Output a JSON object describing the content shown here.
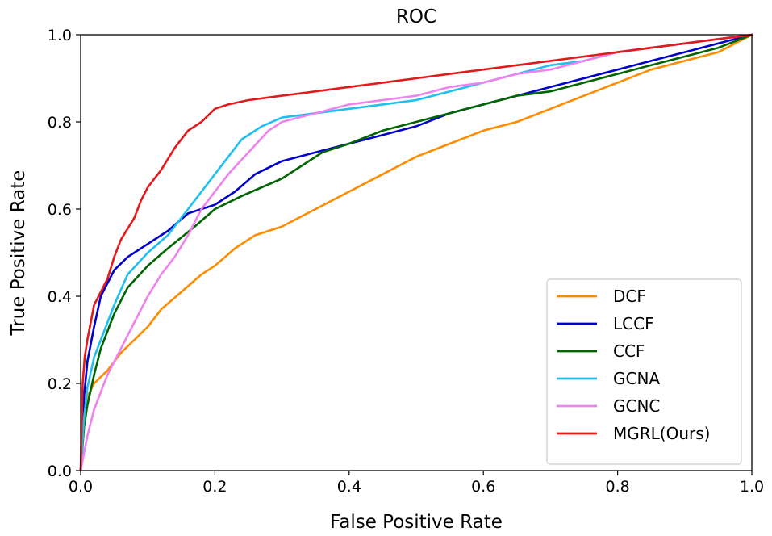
{
  "chart_data": {
    "type": "line",
    "title": "ROC",
    "xlabel": "False Positive Rate",
    "ylabel": "True Positive Rate",
    "xlim": [
      0.0,
      1.0
    ],
    "ylim": [
      0.0,
      1.0
    ],
    "x_ticks": [
      0.0,
      0.2,
      0.4,
      0.6,
      0.8,
      1.0
    ],
    "y_ticks": [
      0.0,
      0.2,
      0.4,
      0.6,
      0.8,
      1.0
    ],
    "x_tick_labels": [
      "0.0",
      "0.2",
      "0.4",
      "0.6",
      "0.8",
      "1.0"
    ],
    "y_tick_labels": [
      "0.0",
      "0.2",
      "0.4",
      "0.6",
      "0.8",
      "1.0"
    ],
    "grid": false,
    "legend_position": "bottom-right",
    "series": [
      {
        "name": "DCF",
        "color": "#ff8c00",
        "points": [
          [
            0,
            0
          ],
          [
            0.005,
            0.12
          ],
          [
            0.01,
            0.17
          ],
          [
            0.02,
            0.2
          ],
          [
            0.04,
            0.23
          ],
          [
            0.06,
            0.27
          ],
          [
            0.08,
            0.3
          ],
          [
            0.1,
            0.33
          ],
          [
            0.12,
            0.37
          ],
          [
            0.15,
            0.41
          ],
          [
            0.18,
            0.45
          ],
          [
            0.2,
            0.47
          ],
          [
            0.23,
            0.51
          ],
          [
            0.26,
            0.54
          ],
          [
            0.3,
            0.56
          ],
          [
            0.35,
            0.6
          ],
          [
            0.4,
            0.64
          ],
          [
            0.45,
            0.68
          ],
          [
            0.5,
            0.72
          ],
          [
            0.55,
            0.75
          ],
          [
            0.6,
            0.78
          ],
          [
            0.65,
            0.8
          ],
          [
            0.7,
            0.83
          ],
          [
            0.75,
            0.86
          ],
          [
            0.8,
            0.89
          ],
          [
            0.85,
            0.92
          ],
          [
            0.9,
            0.94
          ],
          [
            0.95,
            0.96
          ],
          [
            1.0,
            1.0
          ]
        ]
      },
      {
        "name": "LCCF",
        "color": "#0000cd",
        "points": [
          [
            0,
            0
          ],
          [
            0.005,
            0.17
          ],
          [
            0.01,
            0.25
          ],
          [
            0.02,
            0.33
          ],
          [
            0.03,
            0.4
          ],
          [
            0.04,
            0.43
          ],
          [
            0.05,
            0.46
          ],
          [
            0.07,
            0.49
          ],
          [
            0.1,
            0.52
          ],
          [
            0.13,
            0.55
          ],
          [
            0.16,
            0.59
          ],
          [
            0.2,
            0.61
          ],
          [
            0.23,
            0.64
          ],
          [
            0.26,
            0.68
          ],
          [
            0.3,
            0.71
          ],
          [
            0.35,
            0.73
          ],
          [
            0.4,
            0.75
          ],
          [
            0.45,
            0.77
          ],
          [
            0.5,
            0.79
          ],
          [
            0.55,
            0.82
          ],
          [
            0.6,
            0.84
          ],
          [
            0.65,
            0.86
          ],
          [
            0.7,
            0.88
          ],
          [
            0.75,
            0.9
          ],
          [
            0.8,
            0.92
          ],
          [
            0.85,
            0.94
          ],
          [
            0.9,
            0.96
          ],
          [
            0.95,
            0.98
          ],
          [
            1.0,
            1.0
          ]
        ]
      },
      {
        "name": "CCF",
        "color": "#006400",
        "points": [
          [
            0,
            0
          ],
          [
            0.005,
            0.1
          ],
          [
            0.01,
            0.15
          ],
          [
            0.02,
            0.22
          ],
          [
            0.03,
            0.28
          ],
          [
            0.05,
            0.36
          ],
          [
            0.07,
            0.42
          ],
          [
            0.1,
            0.47
          ],
          [
            0.13,
            0.51
          ],
          [
            0.17,
            0.56
          ],
          [
            0.2,
            0.6
          ],
          [
            0.24,
            0.63
          ],
          [
            0.27,
            0.65
          ],
          [
            0.3,
            0.67
          ],
          [
            0.33,
            0.7
          ],
          [
            0.36,
            0.73
          ],
          [
            0.4,
            0.75
          ],
          [
            0.45,
            0.78
          ],
          [
            0.5,
            0.8
          ],
          [
            0.55,
            0.82
          ],
          [
            0.6,
            0.84
          ],
          [
            0.65,
            0.86
          ],
          [
            0.7,
            0.87
          ],
          [
            0.75,
            0.89
          ],
          [
            0.8,
            0.91
          ],
          [
            0.85,
            0.93
          ],
          [
            0.9,
            0.95
          ],
          [
            0.95,
            0.97
          ],
          [
            1.0,
            1.0
          ]
        ]
      },
      {
        "name": "GCNA",
        "color": "#1fbfef",
        "points": [
          [
            0,
            0
          ],
          [
            0.005,
            0.12
          ],
          [
            0.01,
            0.19
          ],
          [
            0.02,
            0.26
          ],
          [
            0.03,
            0.3
          ],
          [
            0.05,
            0.38
          ],
          [
            0.07,
            0.45
          ],
          [
            0.1,
            0.5
          ],
          [
            0.13,
            0.54
          ],
          [
            0.16,
            0.6
          ],
          [
            0.18,
            0.64
          ],
          [
            0.2,
            0.68
          ],
          [
            0.22,
            0.72
          ],
          [
            0.24,
            0.76
          ],
          [
            0.27,
            0.79
          ],
          [
            0.3,
            0.81
          ],
          [
            0.35,
            0.82
          ],
          [
            0.4,
            0.83
          ],
          [
            0.45,
            0.84
          ],
          [
            0.5,
            0.85
          ],
          [
            0.55,
            0.87
          ],
          [
            0.6,
            0.89
          ],
          [
            0.65,
            0.91
          ],
          [
            0.7,
            0.93
          ],
          [
            0.75,
            0.94
          ],
          [
            0.8,
            0.96
          ],
          [
            0.85,
            0.97
          ],
          [
            0.9,
            0.98
          ],
          [
            0.95,
            0.99
          ],
          [
            1.0,
            1.0
          ]
        ]
      },
      {
        "name": "GCNC",
        "color": "#ee82ee",
        "points": [
          [
            0,
            0
          ],
          [
            0.005,
            0.04
          ],
          [
            0.01,
            0.08
          ],
          [
            0.02,
            0.14
          ],
          [
            0.04,
            0.22
          ],
          [
            0.06,
            0.28
          ],
          [
            0.08,
            0.34
          ],
          [
            0.1,
            0.4
          ],
          [
            0.12,
            0.45
          ],
          [
            0.14,
            0.49
          ],
          [
            0.16,
            0.54
          ],
          [
            0.18,
            0.6
          ],
          [
            0.2,
            0.64
          ],
          [
            0.22,
            0.68
          ],
          [
            0.25,
            0.73
          ],
          [
            0.28,
            0.78
          ],
          [
            0.3,
            0.8
          ],
          [
            0.35,
            0.82
          ],
          [
            0.4,
            0.84
          ],
          [
            0.45,
            0.85
          ],
          [
            0.5,
            0.86
          ],
          [
            0.55,
            0.88
          ],
          [
            0.6,
            0.89
          ],
          [
            0.65,
            0.91
          ],
          [
            0.7,
            0.92
          ],
          [
            0.75,
            0.94
          ],
          [
            0.8,
            0.96
          ],
          [
            0.85,
            0.97
          ],
          [
            0.9,
            0.98
          ],
          [
            0.95,
            0.99
          ],
          [
            1.0,
            1.0
          ]
        ]
      },
      {
        "name": "MGRL(Ours)",
        "color": "#e31a1c",
        "points": [
          [
            0,
            0
          ],
          [
            0.003,
            0.2
          ],
          [
            0.006,
            0.26
          ],
          [
            0.01,
            0.3
          ],
          [
            0.015,
            0.34
          ],
          [
            0.02,
            0.38
          ],
          [
            0.03,
            0.41
          ],
          [
            0.04,
            0.44
          ],
          [
            0.05,
            0.49
          ],
          [
            0.06,
            0.53
          ],
          [
            0.08,
            0.58
          ],
          [
            0.09,
            0.62
          ],
          [
            0.1,
            0.65
          ],
          [
            0.12,
            0.69
          ],
          [
            0.14,
            0.74
          ],
          [
            0.16,
            0.78
          ],
          [
            0.18,
            0.8
          ],
          [
            0.2,
            0.83
          ],
          [
            0.22,
            0.84
          ],
          [
            0.25,
            0.85
          ],
          [
            0.3,
            0.86
          ],
          [
            0.35,
            0.87
          ],
          [
            0.4,
            0.88
          ],
          [
            0.45,
            0.89
          ],
          [
            0.5,
            0.9
          ],
          [
            0.55,
            0.91
          ],
          [
            0.6,
            0.92
          ],
          [
            0.65,
            0.93
          ],
          [
            0.7,
            0.94
          ],
          [
            0.75,
            0.95
          ],
          [
            0.8,
            0.96
          ],
          [
            0.85,
            0.97
          ],
          [
            0.9,
            0.98
          ],
          [
            0.95,
            0.99
          ],
          [
            1.0,
            1.0
          ]
        ]
      }
    ]
  }
}
